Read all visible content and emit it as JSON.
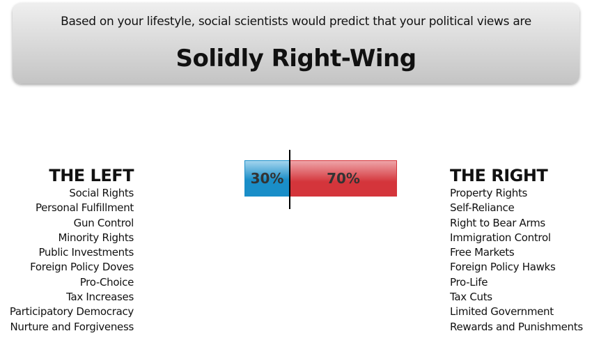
{
  "banner": {
    "subtitle": "Based on your lifestyle, social scientists would predict that your political views are",
    "result": "Solidly Right-Wing"
  },
  "meter": {
    "left_percent": 30,
    "right_percent": 70,
    "left_label": "30%",
    "right_label": "70%",
    "left_color": "#1a8ec8",
    "right_color": "#d4353b"
  },
  "left": {
    "heading": "THE LEFT",
    "items": [
      "Social Rights",
      "Personal Fulfillment",
      "Gun Control",
      "Minority Rights",
      "Public Investments",
      "Foreign Policy Doves",
      "Pro-Choice",
      "Tax Increases",
      "Participatory Democracy",
      "Nurture and Forgiveness"
    ]
  },
  "right": {
    "heading": "THE RIGHT",
    "items": [
      "Property Rights",
      "Self-Reliance",
      "Right to Bear Arms",
      "Immigration Control",
      "Free Markets",
      "Foreign Policy Hawks",
      "Pro-Life",
      "Tax Cuts",
      "Limited Government",
      "Rewards and Punishments"
    ]
  }
}
